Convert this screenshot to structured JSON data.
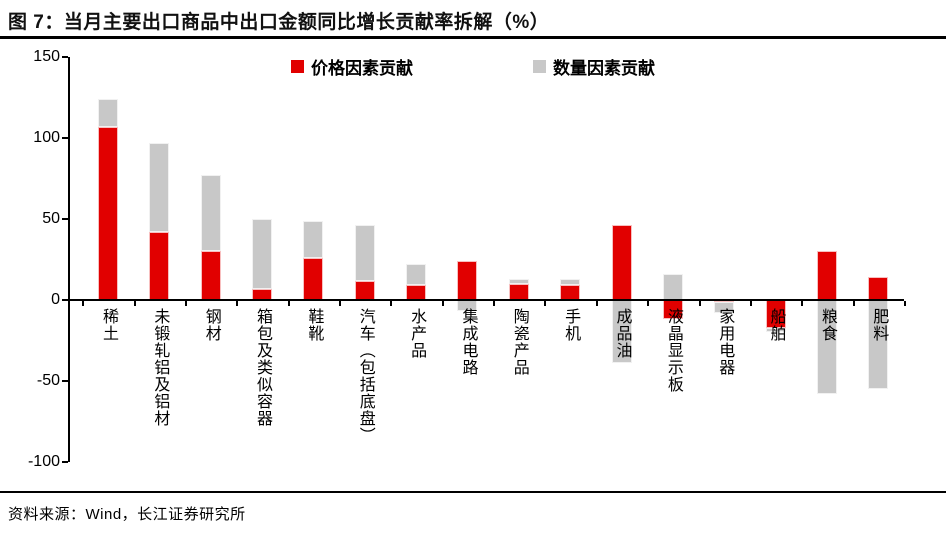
{
  "title": "图 7：当月主要出口商品中出口金额同比增长贡献率拆解（%）",
  "source": "资料来源：Wind，长江证券研究所",
  "colors": {
    "price_red": "#e10000",
    "quantity_gray": "#c8c8c8",
    "axis_black": "#000000"
  },
  "chart_data": {
    "type": "bar",
    "stacked": true,
    "title": "图 7：当月主要出口商品中出口金额同比增长贡献率拆解（%）",
    "unit": "%",
    "categories": [
      "稀土",
      "未锻轧铝及铝材",
      "钢材",
      "箱包及类似容器",
      "鞋靴",
      "汽车（包括底盘）",
      "水产品",
      "集成电路",
      "陶瓷产品",
      "手机",
      "成品油",
      "液晶显示板",
      "家用电器",
      "船舶",
      "粮食",
      "肥料"
    ],
    "series": [
      {
        "name": "价格因素贡献",
        "color": "#e10000",
        "values": [
          107,
          42,
          30,
          7,
          26,
          12,
          9,
          24,
          10,
          9,
          46,
          -12,
          -1,
          -17,
          30,
          14
        ]
      },
      {
        "name": "数量因素贡献",
        "color": "#c8c8c8",
        "values": [
          17,
          55,
          47,
          43,
          23,
          34,
          13,
          -7,
          3,
          4,
          -39,
          16,
          -7,
          -3,
          -58,
          -55
        ]
      }
    ],
    "ylim": [
      -100,
      150
    ],
    "yticks": [
      150,
      100,
      50,
      0,
      -50,
      -100
    ],
    "xlabel": "",
    "ylabel": "",
    "grid": false,
    "legend_position": "top-center"
  }
}
